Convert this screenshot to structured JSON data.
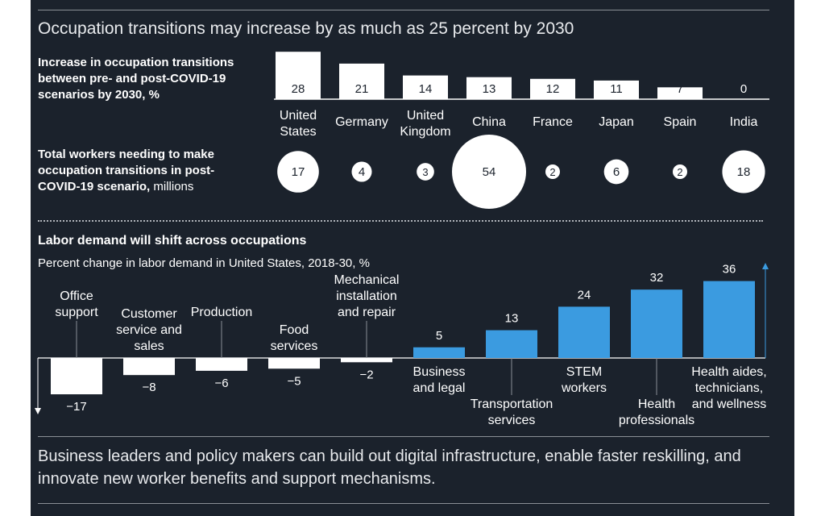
{
  "title": "Occupation transitions may increase by as much as 25 percent by 2030",
  "footer": "Business leaders and policy makers can build out digital infrastructure, enable faster reskilling, and innovate new worker benefits and support mechanisms.",
  "colors": {
    "background": "#1b222c",
    "bar_positive": "#3b9be0",
    "bar_negative": "#ffffff",
    "text": "#ffffff"
  },
  "chart_data": [
    {
      "type": "bar",
      "title": "Increase in occupation transitions between pre- and post-COVID-19 scenarios by 2030, %",
      "categories": [
        "United States",
        "Germany",
        "United Kingdom",
        "China",
        "France",
        "Japan",
        "Spain",
        "India"
      ],
      "values": [
        28,
        21,
        14,
        13,
        12,
        11,
        7,
        0
      ]
    },
    {
      "type": "scatter",
      "title_bold": "Total workers needing to make occupation transitions in post-COVID-19 scenario,",
      "title_unit": " millions",
      "categories": [
        "United States",
        "Germany",
        "United Kingdom",
        "China",
        "France",
        "Japan",
        "Spain",
        "India"
      ],
      "values": [
        17,
        4,
        3,
        54,
        2,
        6,
        2,
        18
      ]
    },
    {
      "type": "bar",
      "title": "Labor demand will shift across occupations",
      "subtitle": "Percent change in labor demand in United States, 2018-30, %",
      "categories": [
        "Office support",
        "Customer service and sales",
        "Production",
        "Food services",
        "Mechanical installation and repair",
        "Business and legal",
        "Transportation services",
        "STEM workers",
        "Health professionals",
        "Health aides, technicians, and wellness"
      ],
      "values": [
        -17,
        -8,
        -6,
        -5,
        -2,
        5,
        13,
        24,
        32,
        36
      ],
      "value_labels": [
        "−17",
        "−8",
        "−6",
        "−5",
        "−2",
        "5",
        "13",
        "24",
        "32",
        "36"
      ]
    }
  ]
}
